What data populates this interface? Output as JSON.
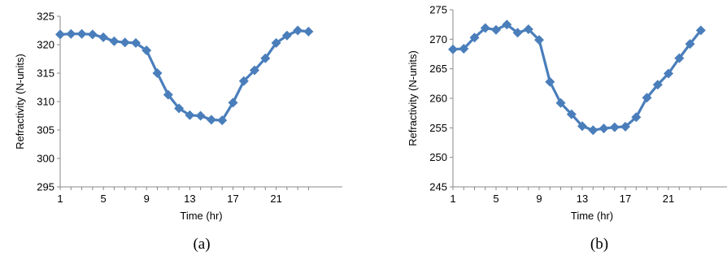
{
  "colors": {
    "series": "#4a7ebb",
    "axis": "#888888"
  },
  "chart_data": [
    {
      "type": "line",
      "panel_label": "(a)",
      "xlabel": "Time (hr)",
      "ylabel": "Refractivity (N-units)",
      "xlim": [
        1,
        24
      ],
      "ylim": [
        295,
        325
      ],
      "xticks": [
        1,
        5,
        9,
        13,
        17,
        21
      ],
      "yticks": [
        295,
        300,
        305,
        310,
        315,
        320,
        325
      ],
      "grid": false,
      "marker": "diamond",
      "series": [
        {
          "x": [
            1,
            2,
            3,
            4,
            5,
            6,
            7,
            8,
            9,
            10,
            11,
            12,
            13,
            14,
            15,
            16,
            17,
            18,
            19,
            20,
            21,
            22,
            23,
            24
          ],
          "values": [
            321.8,
            321.9,
            321.9,
            321.8,
            321.3,
            320.6,
            320.4,
            320.3,
            319.0,
            315.0,
            311.2,
            308.8,
            307.6,
            307.5,
            306.8,
            306.7,
            309.8,
            313.6,
            315.5,
            317.6,
            320.3,
            321.6,
            322.5,
            322.3
          ]
        }
      ]
    },
    {
      "type": "line",
      "panel_label": "(b)",
      "xlabel": "Time (hr)",
      "ylabel": "Refractivity (N-units)",
      "xlim": [
        1,
        24
      ],
      "ylim": [
        245,
        275
      ],
      "xticks": [
        1,
        5,
        9,
        13,
        17,
        21
      ],
      "yticks": [
        245,
        250,
        255,
        260,
        265,
        270,
        275
      ],
      "grid": false,
      "marker": "diamond",
      "series": [
        {
          "x": [
            1,
            2,
            3,
            4,
            5,
            6,
            7,
            8,
            9,
            10,
            11,
            12,
            13,
            14,
            15,
            16,
            17,
            18,
            19,
            20,
            21,
            22,
            23,
            24
          ],
          "values": [
            268.3,
            268.4,
            270.3,
            271.9,
            271.6,
            272.5,
            271.1,
            271.7,
            269.9,
            262.8,
            259.2,
            257.3,
            255.3,
            254.6,
            254.9,
            255.1,
            255.2,
            256.8,
            260.1,
            262.3,
            264.2,
            266.8,
            269.2,
            271.5
          ]
        }
      ]
    }
  ]
}
